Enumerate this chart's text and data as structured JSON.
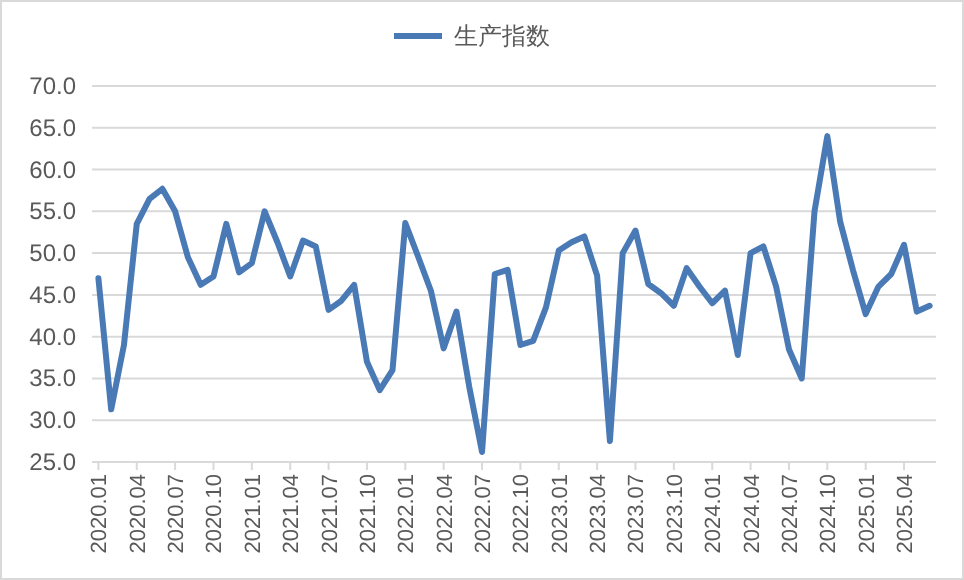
{
  "chart_data": {
    "type": "line",
    "categories": [
      "2020.01",
      null,
      null,
      "2020.04",
      null,
      null,
      "2020.07",
      null,
      null,
      "2020.10",
      null,
      null,
      "2021.01",
      null,
      null,
      "2021.04",
      null,
      null,
      "2021.07",
      null,
      null,
      "2021.10",
      null,
      null,
      "2022.01",
      null,
      null,
      "2022.04",
      null,
      null,
      "2022.07",
      null,
      null,
      "2022.10",
      null,
      null,
      "2023.01",
      null,
      null,
      "2023.04",
      null,
      null,
      "2023.07",
      null,
      null,
      "2023.10",
      null,
      null,
      "2024.01",
      null,
      null,
      "2024.04",
      null,
      null,
      "2024.07",
      null,
      null,
      "2024.10",
      null,
      null,
      "2025.01",
      null,
      null,
      "2025.04",
      null,
      null
    ],
    "series": [
      {
        "name": "生产指数",
        "color": "#4a7ab5",
        "values": [
          47.0,
          31.3,
          39.0,
          53.5,
          56.5,
          57.7,
          55.0,
          49.5,
          46.2,
          47.2,
          53.5,
          47.7,
          48.8,
          55.0,
          51.3,
          47.2,
          51.5,
          50.8,
          43.2,
          44.3,
          46.2,
          37.0,
          33.6,
          36.0,
          53.6,
          49.6,
          45.5,
          38.6,
          43.0,
          34.0,
          26.2,
          47.5,
          48.0,
          39.0,
          39.5,
          43.5,
          50.3,
          51.3,
          52.0,
          47.3,
          27.5,
          50.0,
          52.7,
          46.3,
          45.2,
          43.7,
          48.2,
          46.0,
          44.0,
          45.5,
          37.8,
          50.0,
          50.8,
          46.0,
          38.5,
          35.0,
          55.0,
          64.0,
          53.8,
          48.0,
          42.7,
          46.0,
          47.5,
          51.0,
          43.0,
          43.7
        ]
      }
    ],
    "ylim": [
      25,
      70
    ],
    "yticks": [
      {
        "value": 25,
        "label": "25.0"
      },
      {
        "value": 30,
        "label": "30.0"
      },
      {
        "value": 35,
        "label": "35.0"
      },
      {
        "value": 40,
        "label": "40.0"
      },
      {
        "value": 45,
        "label": "45.0"
      },
      {
        "value": 50,
        "label": "50.0"
      },
      {
        "value": 55,
        "label": "55.0"
      },
      {
        "value": 60,
        "label": "60.0"
      },
      {
        "value": 65,
        "label": "65.0"
      },
      {
        "value": 70,
        "label": "70.0"
      }
    ],
    "grid": "y",
    "legend": "top"
  }
}
